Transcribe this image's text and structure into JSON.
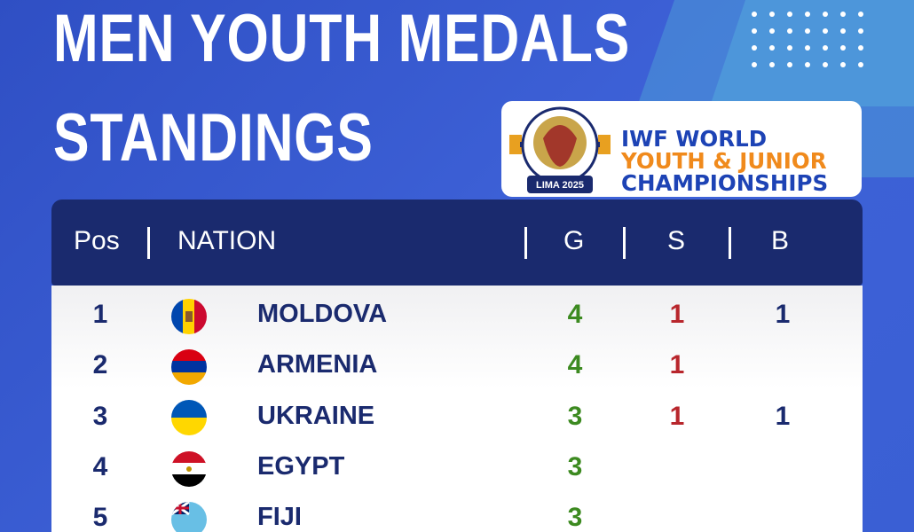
{
  "header": {
    "title_lines": [
      "MEN YOUTH MEDALS",
      "STANDINGS"
    ]
  },
  "logo": {
    "lines": [
      "IWF WORLD",
      "YOUTH & JUNIOR",
      "CHAMPIONSHIPS"
    ],
    "badge": "LIMA 2025"
  },
  "table": {
    "columns": [
      "Pos",
      "NATION",
      "G",
      "S",
      "B"
    ],
    "rows": [
      [
        "1",
        "MOLDOVA",
        "4",
        "1",
        "1"
      ],
      [
        "2",
        "ARMENIA",
        "4",
        "1",
        null
      ],
      [
        "3",
        "UKRAINE",
        "3",
        "1",
        "1"
      ],
      [
        "4",
        "EGYPT",
        "3",
        null,
        null
      ],
      [
        "5",
        "FIJI",
        "3",
        null,
        null
      ]
    ]
  }
}
